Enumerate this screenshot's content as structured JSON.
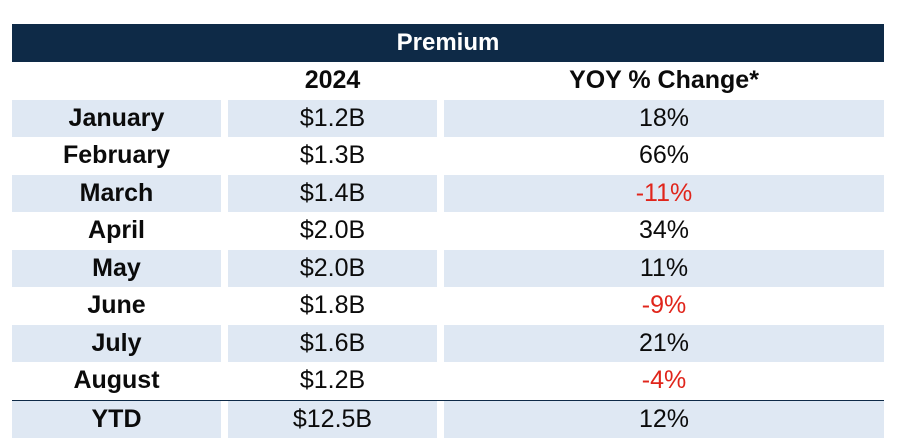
{
  "table": {
    "title": "Premium",
    "headers": {
      "month": "",
      "year": "2024",
      "yoy": "YOY % Change*"
    },
    "rows": [
      {
        "month": "January",
        "value": "$1.2B",
        "yoy": "18%",
        "negative": false
      },
      {
        "month": "February",
        "value": "$1.3B",
        "yoy": "66%",
        "negative": false
      },
      {
        "month": "March",
        "value": "$1.4B",
        "yoy": "-11%",
        "negative": true
      },
      {
        "month": "April",
        "value": "$2.0B",
        "yoy": "34%",
        "negative": false
      },
      {
        "month": "May",
        "value": "$2.0B",
        "yoy": "11%",
        "negative": false
      },
      {
        "month": "June",
        "value": "$1.8B",
        "yoy": "-9%",
        "negative": true
      },
      {
        "month": "July",
        "value": "$1.6B",
        "yoy": "21%",
        "negative": false
      },
      {
        "month": "August",
        "value": "$1.2B",
        "yoy": "-4%",
        "negative": true
      }
    ],
    "total": {
      "month": "YTD",
      "value": "$12.5B",
      "yoy": "12%"
    }
  },
  "colors": {
    "header_bg": "#0e2a47",
    "row_shade": "#dfe8f3",
    "negative": "#e0251b"
  }
}
